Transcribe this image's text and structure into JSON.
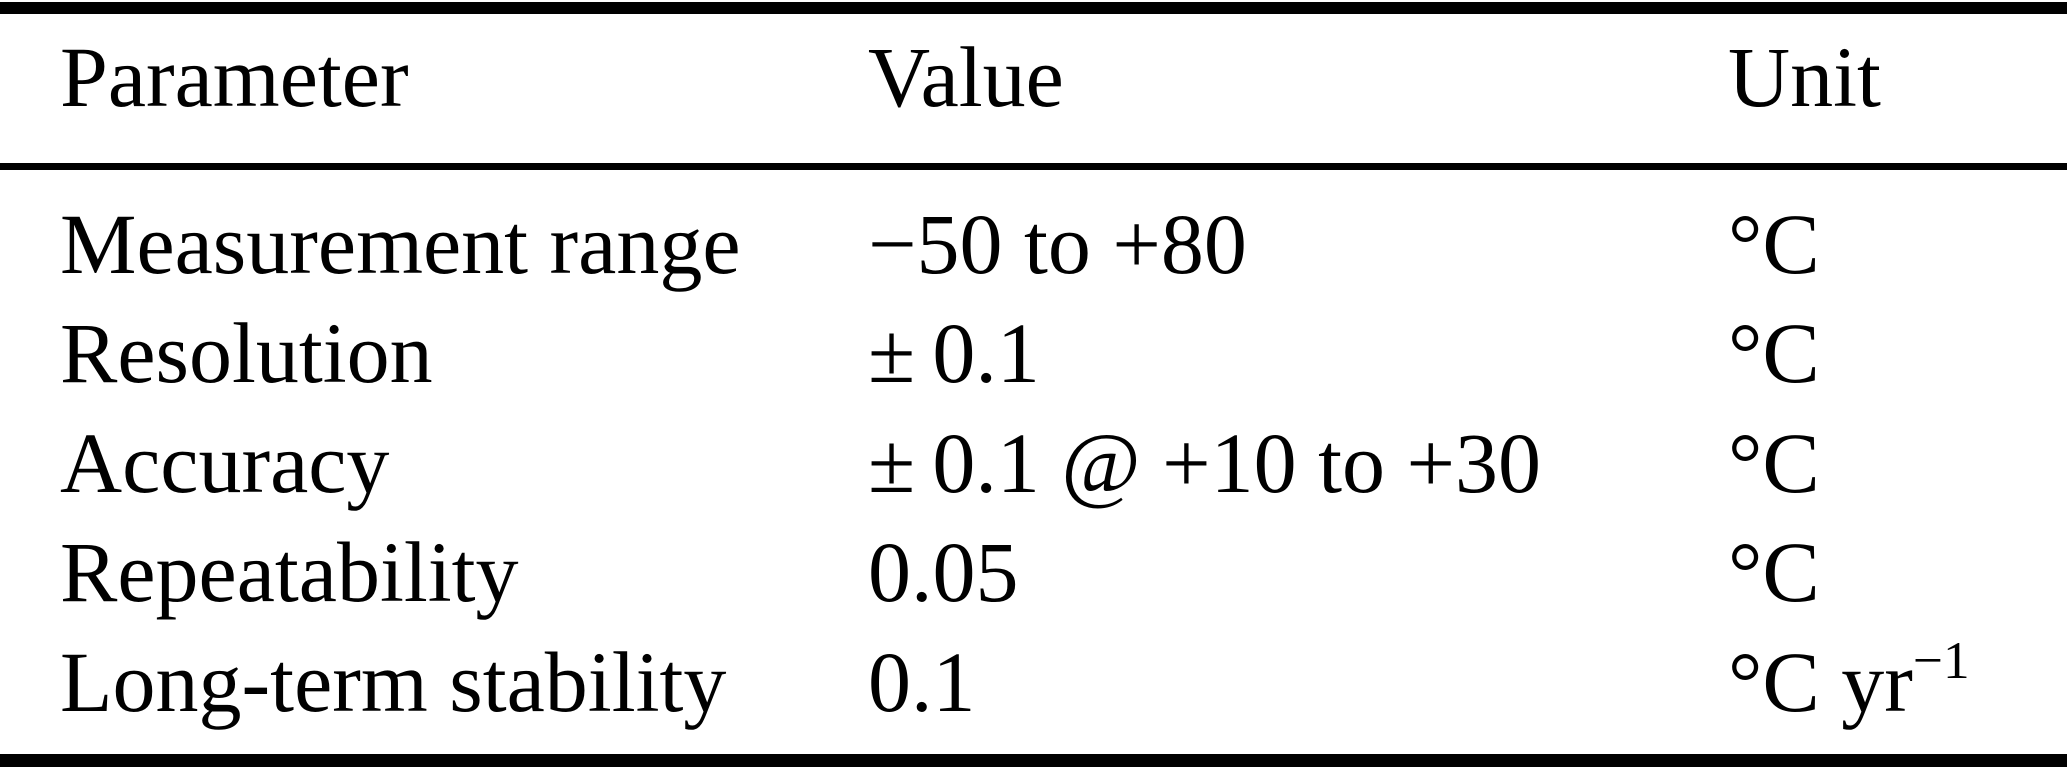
{
  "table": {
    "columns": [
      "Parameter",
      "Value",
      "Unit"
    ],
    "rows": [
      {
        "param": "Measurement range",
        "value": "−50 to +80",
        "unit": "°C",
        "unit_sup": ""
      },
      {
        "param": "Resolution",
        "value": "± 0.1",
        "unit": "°C",
        "unit_sup": ""
      },
      {
        "param": "Accuracy",
        "value": "± 0.1 @ +10 to +30",
        "unit": "°C",
        "unit_sup": ""
      },
      {
        "param": "Repeatability",
        "value": "0.05",
        "unit": "°C",
        "unit_sup": ""
      },
      {
        "param": "Long-term stability",
        "value": "0.1",
        "unit": "°C yr",
        "unit_sup": "−1"
      }
    ],
    "colors": {
      "text": "#000000",
      "background": "#ffffff",
      "rule": "#000000"
    }
  }
}
